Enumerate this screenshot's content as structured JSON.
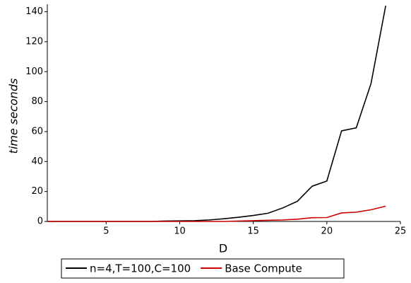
{
  "chart_data": {
    "type": "line",
    "xlabel": "D",
    "ylabel": "time seconds",
    "x": [
      1,
      2,
      3,
      4,
      5,
      6,
      7,
      8,
      9,
      10,
      11,
      12,
      13,
      14,
      15,
      16,
      17,
      18,
      19,
      20,
      21,
      22,
      23,
      24
    ],
    "series": [
      {
        "name": "n=4,T=100,C=100",
        "color": "#000000",
        "values": [
          0,
          0,
          0,
          0,
          0,
          0,
          0,
          0,
          0.3,
          0.4,
          0.5,
          1,
          1.8,
          2.8,
          4,
          5.5,
          9,
          13.5,
          23.5,
          27,
          60.5,
          62.5,
          92,
          144
        ]
      },
      {
        "name": "Base Compute",
        "color": "#cc0000",
        "values": [
          0,
          0,
          0,
          0,
          0,
          0,
          0,
          0,
          0,
          0,
          0,
          0,
          0,
          0.3,
          0.5,
          0.8,
          1,
          1.5,
          2.5,
          2.6,
          5.7,
          6.2,
          7.8,
          10.2
        ]
      }
    ],
    "xlim": [
      1,
      25
    ],
    "xticks": [
      5,
      10,
      15,
      20,
      25
    ],
    "ylim": [
      0,
      145
    ],
    "yticks": [
      0,
      20,
      40,
      60,
      80,
      100,
      120,
      140
    ],
    "legend": "bottom"
  }
}
